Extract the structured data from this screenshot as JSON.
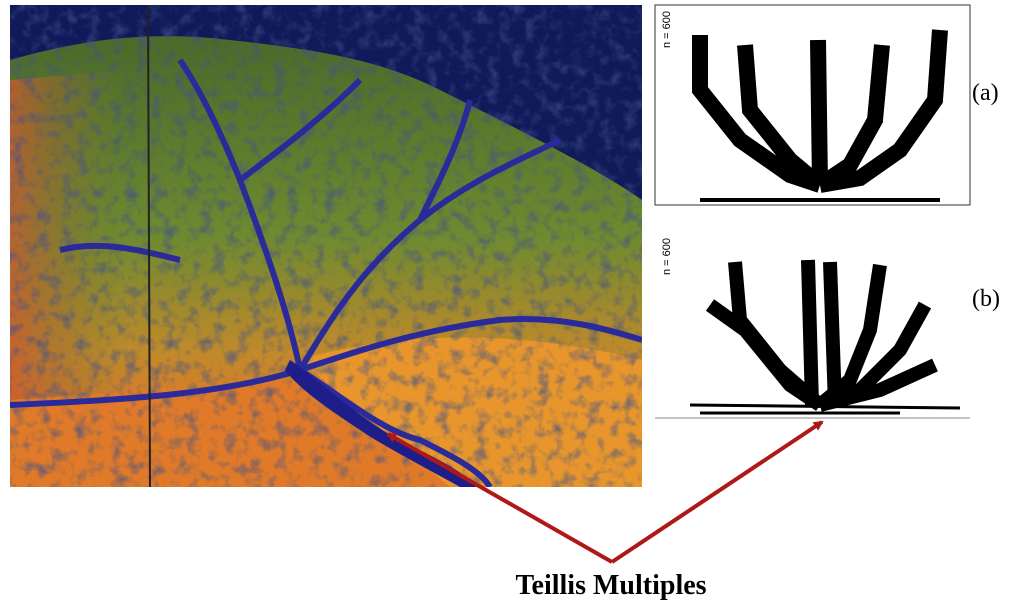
{
  "panels": [
    {
      "label": "(a)",
      "annotation": "n = 600"
    },
    {
      "label": "(b)",
      "annotation": "n = 600"
    }
  ],
  "caption": "Teillis Multiples"
}
